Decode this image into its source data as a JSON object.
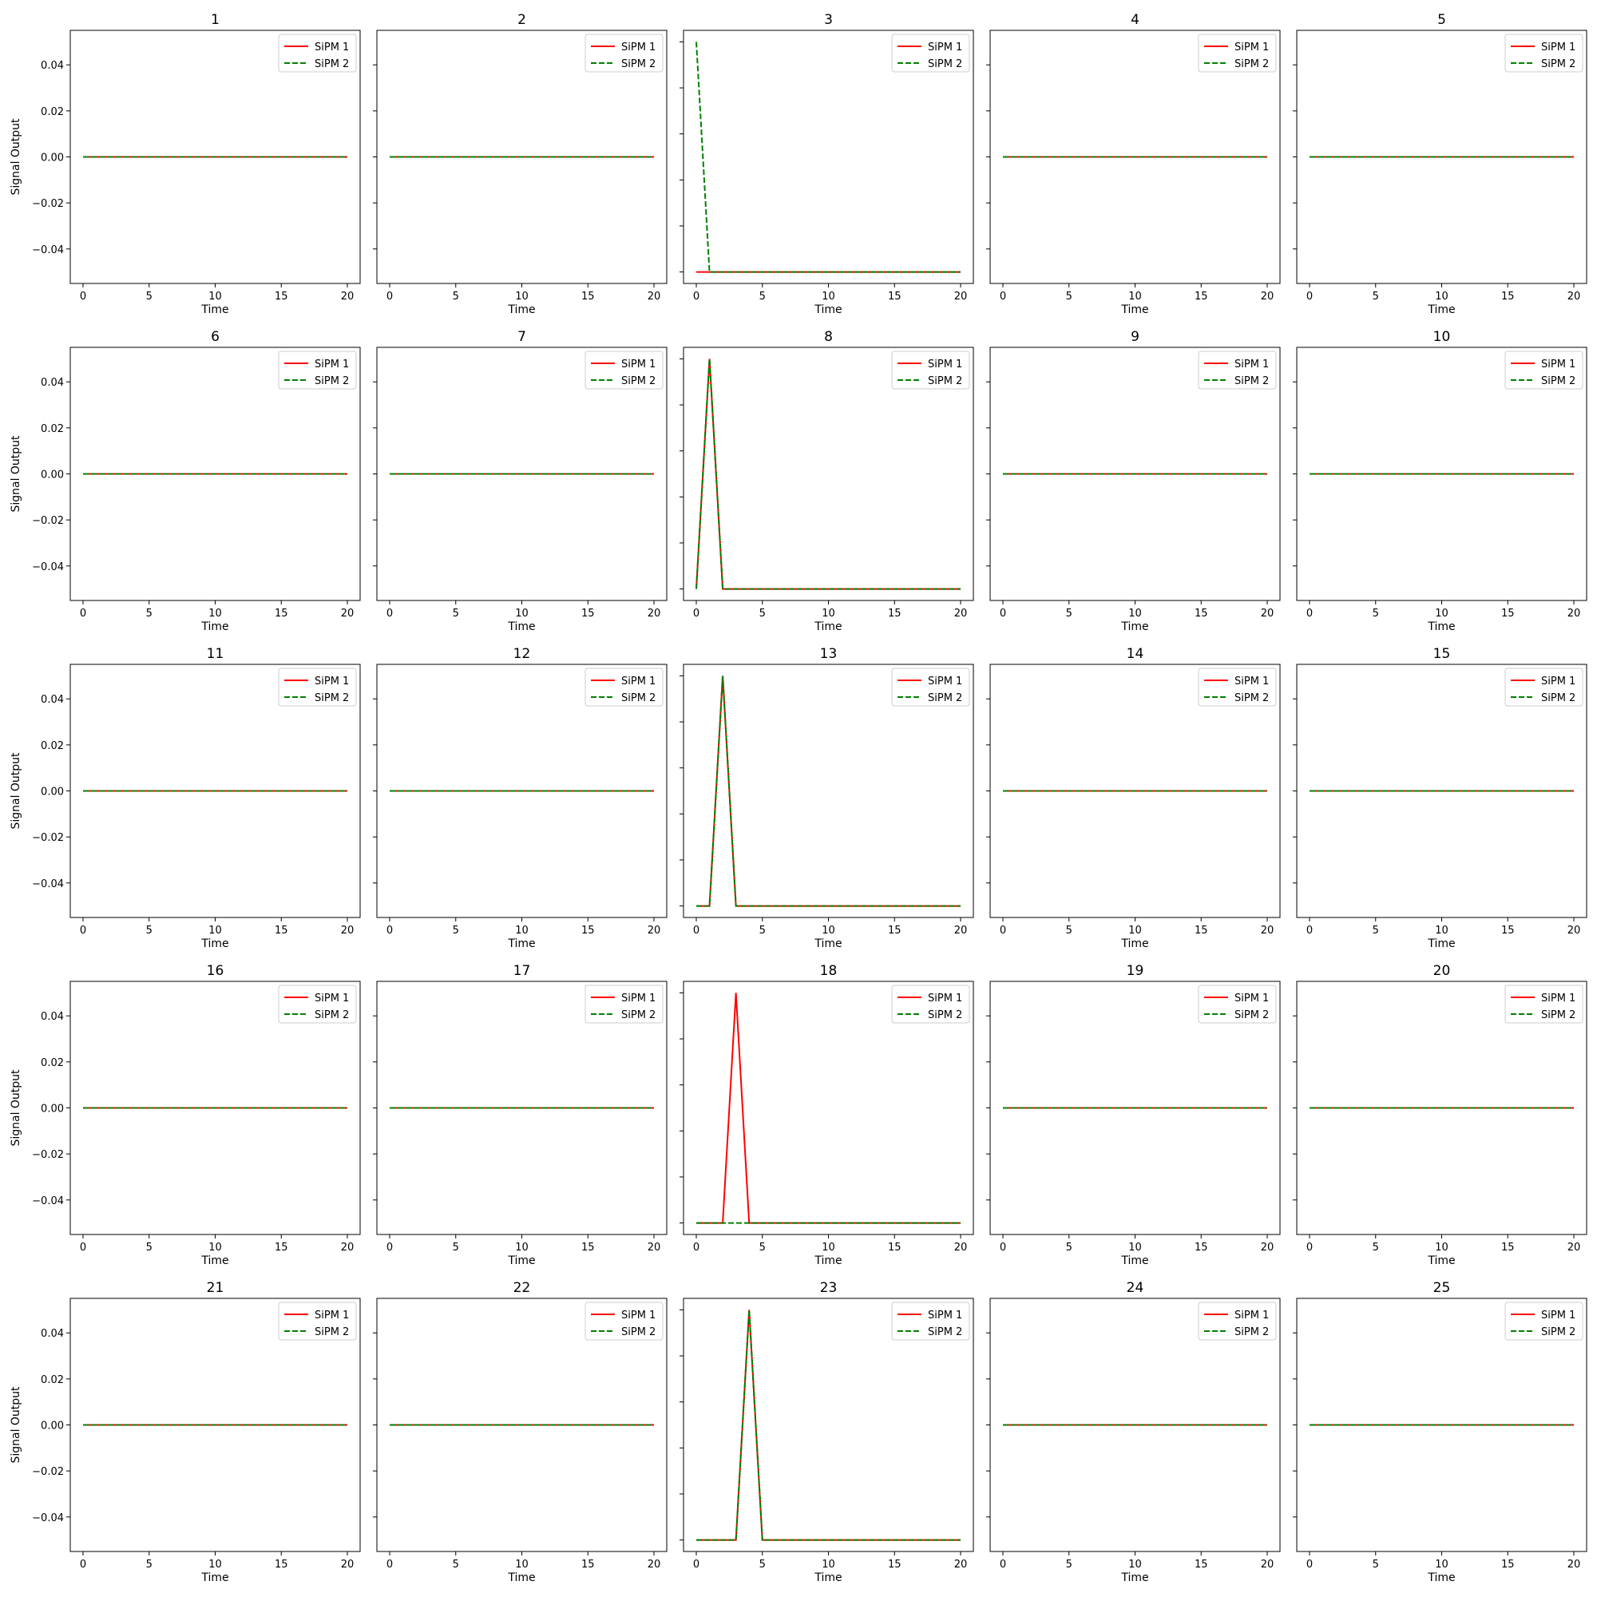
{
  "colors": {
    "sipm1": "#ff0000",
    "sipm2": "#008000"
  },
  "chart_data": {
    "type": "line",
    "layout": "5x5 grid of small multiples",
    "xlabel": "Time",
    "ylabel": "Signal Output",
    "xlim": [
      -1,
      21
    ],
    "ylim": [
      -0.055,
      0.055
    ],
    "xticks": [
      0,
      5,
      10,
      15,
      20
    ],
    "yticks": [
      -0.04,
      -0.02,
      0.0,
      0.02,
      0.04
    ],
    "ytick_labels": [
      "−0.04",
      "−0.02",
      "0.00",
      "0.02",
      "0.04"
    ],
    "legend": {
      "placement": "upper right",
      "entries": [
        "SiPM 1",
        "SiPM 2"
      ]
    },
    "x": [
      0,
      1,
      2,
      3,
      4,
      5,
      6,
      7,
      8,
      9,
      10,
      11,
      12,
      13,
      14,
      15,
      16,
      17,
      18,
      19,
      20
    ],
    "panels": [
      {
        "title": "1",
        "sipm1": [
          0,
          0,
          0,
          0,
          0,
          0,
          0,
          0,
          0,
          0,
          0,
          0,
          0,
          0,
          0,
          0,
          0,
          0,
          0,
          0,
          0
        ],
        "sipm2": [
          0,
          0,
          0,
          0,
          0,
          0,
          0,
          0,
          0,
          0,
          0,
          0,
          0,
          0,
          0,
          0,
          0,
          0,
          0,
          0,
          0
        ]
      },
      {
        "title": "2",
        "sipm1": [
          0,
          0,
          0,
          0,
          0,
          0,
          0,
          0,
          0,
          0,
          0,
          0,
          0,
          0,
          0,
          0,
          0,
          0,
          0,
          0,
          0
        ],
        "sipm2": [
          0,
          0,
          0,
          0,
          0,
          0,
          0,
          0,
          0,
          0,
          0,
          0,
          0,
          0,
          0,
          0,
          0,
          0,
          0,
          0,
          0
        ]
      },
      {
        "title": "3",
        "sipm1": [
          0,
          0,
          0,
          0,
          0,
          0,
          0,
          0,
          0,
          0,
          0,
          0,
          0,
          0,
          0,
          0,
          0,
          0,
          0,
          0,
          0
        ],
        "sipm2": [
          1,
          0,
          0,
          0,
          0,
          0,
          0,
          0,
          0,
          0,
          0,
          0,
          0,
          0,
          0,
          0,
          0,
          0,
          0,
          0,
          0
        ],
        "auto_scale": true
      },
      {
        "title": "4",
        "sipm1": [
          0,
          0,
          0,
          0,
          0,
          0,
          0,
          0,
          0,
          0,
          0,
          0,
          0,
          0,
          0,
          0,
          0,
          0,
          0,
          0,
          0
        ],
        "sipm2": [
          0,
          0,
          0,
          0,
          0,
          0,
          0,
          0,
          0,
          0,
          0,
          0,
          0,
          0,
          0,
          0,
          0,
          0,
          0,
          0,
          0
        ]
      },
      {
        "title": "5",
        "sipm1": [
          0,
          0,
          0,
          0,
          0,
          0,
          0,
          0,
          0,
          0,
          0,
          0,
          0,
          0,
          0,
          0,
          0,
          0,
          0,
          0,
          0
        ],
        "sipm2": [
          0,
          0,
          0,
          0,
          0,
          0,
          0,
          0,
          0,
          0,
          0,
          0,
          0,
          0,
          0,
          0,
          0,
          0,
          0,
          0,
          0
        ]
      },
      {
        "title": "6",
        "sipm1": [
          0,
          0,
          0,
          0,
          0,
          0,
          0,
          0,
          0,
          0,
          0,
          0,
          0,
          0,
          0,
          0,
          0,
          0,
          0,
          0,
          0
        ],
        "sipm2": [
          0,
          0,
          0,
          0,
          0,
          0,
          0,
          0,
          0,
          0,
          0,
          0,
          0,
          0,
          0,
          0,
          0,
          0,
          0,
          0,
          0
        ]
      },
      {
        "title": "7",
        "sipm1": [
          0,
          0,
          0,
          0,
          0,
          0,
          0,
          0,
          0,
          0,
          0,
          0,
          0,
          0,
          0,
          0,
          0,
          0,
          0,
          0,
          0
        ],
        "sipm2": [
          0,
          0,
          0,
          0,
          0,
          0,
          0,
          0,
          0,
          0,
          0,
          0,
          0,
          0,
          0,
          0,
          0,
          0,
          0,
          0,
          0
        ]
      },
      {
        "title": "8",
        "sipm1": [
          0,
          1,
          0,
          0,
          0,
          0,
          0,
          0,
          0,
          0,
          0,
          0,
          0,
          0,
          0,
          0,
          0,
          0,
          0,
          0,
          0
        ],
        "sipm2": [
          0,
          1,
          0,
          0,
          0,
          0,
          0,
          0,
          0,
          0,
          0,
          0,
          0,
          0,
          0,
          0,
          0,
          0,
          0,
          0,
          0
        ],
        "auto_scale": true
      },
      {
        "title": "9",
        "sipm1": [
          0,
          0,
          0,
          0,
          0,
          0,
          0,
          0,
          0,
          0,
          0,
          0,
          0,
          0,
          0,
          0,
          0,
          0,
          0,
          0,
          0
        ],
        "sipm2": [
          0,
          0,
          0,
          0,
          0,
          0,
          0,
          0,
          0,
          0,
          0,
          0,
          0,
          0,
          0,
          0,
          0,
          0,
          0,
          0,
          0
        ]
      },
      {
        "title": "10",
        "sipm1": [
          0,
          0,
          0,
          0,
          0,
          0,
          0,
          0,
          0,
          0,
          0,
          0,
          0,
          0,
          0,
          0,
          0,
          0,
          0,
          0,
          0
        ],
        "sipm2": [
          0,
          0,
          0,
          0,
          0,
          0,
          0,
          0,
          0,
          0,
          0,
          0,
          0,
          0,
          0,
          0,
          0,
          0,
          0,
          0,
          0
        ]
      },
      {
        "title": "11",
        "sipm1": [
          0,
          0,
          0,
          0,
          0,
          0,
          0,
          0,
          0,
          0,
          0,
          0,
          0,
          0,
          0,
          0,
          0,
          0,
          0,
          0,
          0
        ],
        "sipm2": [
          0,
          0,
          0,
          0,
          0,
          0,
          0,
          0,
          0,
          0,
          0,
          0,
          0,
          0,
          0,
          0,
          0,
          0,
          0,
          0,
          0
        ]
      },
      {
        "title": "12",
        "sipm1": [
          0,
          0,
          0,
          0,
          0,
          0,
          0,
          0,
          0,
          0,
          0,
          0,
          0,
          0,
          0,
          0,
          0,
          0,
          0,
          0,
          0
        ],
        "sipm2": [
          0,
          0,
          0,
          0,
          0,
          0,
          0,
          0,
          0,
          0,
          0,
          0,
          0,
          0,
          0,
          0,
          0,
          0,
          0,
          0,
          0
        ]
      },
      {
        "title": "13",
        "sipm1": [
          0,
          0,
          1,
          0,
          0,
          0,
          0,
          0,
          0,
          0,
          0,
          0,
          0,
          0,
          0,
          0,
          0,
          0,
          0,
          0,
          0
        ],
        "sipm2": [
          0,
          0,
          1,
          0,
          0,
          0,
          0,
          0,
          0,
          0,
          0,
          0,
          0,
          0,
          0,
          0,
          0,
          0,
          0,
          0,
          0
        ],
        "auto_scale": true
      },
      {
        "title": "14",
        "sipm1": [
          0,
          0,
          0,
          0,
          0,
          0,
          0,
          0,
          0,
          0,
          0,
          0,
          0,
          0,
          0,
          0,
          0,
          0,
          0,
          0,
          0
        ],
        "sipm2": [
          0,
          0,
          0,
          0,
          0,
          0,
          0,
          0,
          0,
          0,
          0,
          0,
          0,
          0,
          0,
          0,
          0,
          0,
          0,
          0,
          0
        ]
      },
      {
        "title": "15",
        "sipm1": [
          0,
          0,
          0,
          0,
          0,
          0,
          0,
          0,
          0,
          0,
          0,
          0,
          0,
          0,
          0,
          0,
          0,
          0,
          0,
          0,
          0
        ],
        "sipm2": [
          0,
          0,
          0,
          0,
          0,
          0,
          0,
          0,
          0,
          0,
          0,
          0,
          0,
          0,
          0,
          0,
          0,
          0,
          0,
          0,
          0
        ]
      },
      {
        "title": "16",
        "sipm1": [
          0,
          0,
          0,
          0,
          0,
          0,
          0,
          0,
          0,
          0,
          0,
          0,
          0,
          0,
          0,
          0,
          0,
          0,
          0,
          0,
          0
        ],
        "sipm2": [
          0,
          0,
          0,
          0,
          0,
          0,
          0,
          0,
          0,
          0,
          0,
          0,
          0,
          0,
          0,
          0,
          0,
          0,
          0,
          0,
          0
        ]
      },
      {
        "title": "17",
        "sipm1": [
          0,
          0,
          0,
          0,
          0,
          0,
          0,
          0,
          0,
          0,
          0,
          0,
          0,
          0,
          0,
          0,
          0,
          0,
          0,
          0,
          0
        ],
        "sipm2": [
          0,
          0,
          0,
          0,
          0,
          0,
          0,
          0,
          0,
          0,
          0,
          0,
          0,
          0,
          0,
          0,
          0,
          0,
          0,
          0,
          0
        ]
      },
      {
        "title": "18",
        "sipm1": [
          0,
          0,
          0,
          1,
          0,
          0,
          0,
          0,
          0,
          0,
          0,
          0,
          0,
          0,
          0,
          0,
          0,
          0,
          0,
          0,
          0
        ],
        "sipm2": [
          0,
          0,
          0,
          0,
          0,
          0,
          0,
          0,
          0,
          0,
          0,
          0,
          0,
          0,
          0,
          0,
          0,
          0,
          0,
          0,
          0
        ],
        "auto_scale": true
      },
      {
        "title": "19",
        "sipm1": [
          0,
          0,
          0,
          0,
          0,
          0,
          0,
          0,
          0,
          0,
          0,
          0,
          0,
          0,
          0,
          0,
          0,
          0,
          0,
          0,
          0
        ],
        "sipm2": [
          0,
          0,
          0,
          0,
          0,
          0,
          0,
          0,
          0,
          0,
          0,
          0,
          0,
          0,
          0,
          0,
          0,
          0,
          0,
          0,
          0
        ]
      },
      {
        "title": "20",
        "sipm1": [
          0,
          0,
          0,
          0,
          0,
          0,
          0,
          0,
          0,
          0,
          0,
          0,
          0,
          0,
          0,
          0,
          0,
          0,
          0,
          0,
          0
        ],
        "sipm2": [
          0,
          0,
          0,
          0,
          0,
          0,
          0,
          0,
          0,
          0,
          0,
          0,
          0,
          0,
          0,
          0,
          0,
          0,
          0,
          0,
          0
        ]
      },
      {
        "title": "21",
        "sipm1": [
          0,
          0,
          0,
          0,
          0,
          0,
          0,
          0,
          0,
          0,
          0,
          0,
          0,
          0,
          0,
          0,
          0,
          0,
          0,
          0,
          0
        ],
        "sipm2": [
          0,
          0,
          0,
          0,
          0,
          0,
          0,
          0,
          0,
          0,
          0,
          0,
          0,
          0,
          0,
          0,
          0,
          0,
          0,
          0,
          0
        ]
      },
      {
        "title": "22",
        "sipm1": [
          0,
          0,
          0,
          0,
          0,
          0,
          0,
          0,
          0,
          0,
          0,
          0,
          0,
          0,
          0,
          0,
          0,
          0,
          0,
          0,
          0
        ],
        "sipm2": [
          0,
          0,
          0,
          0,
          0,
          0,
          0,
          0,
          0,
          0,
          0,
          0,
          0,
          0,
          0,
          0,
          0,
          0,
          0,
          0,
          0
        ]
      },
      {
        "title": "23",
        "sipm1": [
          0,
          0,
          0,
          0,
          1,
          0,
          0,
          0,
          0,
          0,
          0,
          0,
          0,
          0,
          0,
          0,
          0,
          0,
          0,
          0,
          0
        ],
        "sipm2": [
          0,
          0,
          0,
          0,
          1,
          0,
          0,
          0,
          0,
          0,
          0,
          0,
          0,
          0,
          0,
          0,
          0,
          0,
          0,
          0,
          0
        ],
        "auto_scale": true
      },
      {
        "title": "24",
        "sipm1": [
          0,
          0,
          0,
          0,
          0,
          0,
          0,
          0,
          0,
          0,
          0,
          0,
          0,
          0,
          0,
          0,
          0,
          0,
          0,
          0,
          0
        ],
        "sipm2": [
          0,
          0,
          0,
          0,
          0,
          0,
          0,
          0,
          0,
          0,
          0,
          0,
          0,
          0,
          0,
          0,
          0,
          0,
          0,
          0,
          0
        ]
      },
      {
        "title": "25",
        "sipm1": [
          0,
          0,
          0,
          0,
          0,
          0,
          0,
          0,
          0,
          0,
          0,
          0,
          0,
          0,
          0,
          0,
          0,
          0,
          0,
          0,
          0
        ],
        "sipm2": [
          0,
          0,
          0,
          0,
          0,
          0,
          0,
          0,
          0,
          0,
          0,
          0,
          0,
          0,
          0,
          0,
          0,
          0,
          0,
          0,
          0
        ]
      }
    ]
  }
}
